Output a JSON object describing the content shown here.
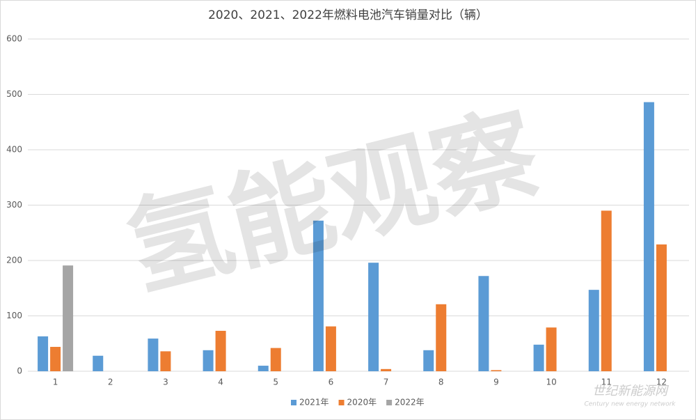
{
  "chart_data": {
    "type": "bar",
    "title": "2020、2021、2022年燃料电池汽车销量对比（辆）",
    "categories": [
      "1",
      "2",
      "3",
      "4",
      "5",
      "6",
      "7",
      "8",
      "9",
      "10",
      "11",
      "12"
    ],
    "series": [
      {
        "name": "2021年",
        "color": "#5b9bd5",
        "values": [
          63,
          28,
          59,
          38,
          10,
          272,
          196,
          38,
          172,
          48,
          147,
          486
        ]
      },
      {
        "name": "2020年",
        "color": "#ed7d31",
        "values": [
          44,
          null,
          36,
          73,
          42,
          81,
          4,
          121,
          2,
          79,
          290,
          229
        ]
      },
      {
        "name": "2022年",
        "color": "#a5a5a5",
        "values": [
          191,
          null,
          null,
          null,
          null,
          null,
          null,
          null,
          null,
          null,
          null,
          null
        ]
      }
    ],
    "ylim": [
      0,
      600
    ],
    "yticks": [
      0,
      100,
      200,
      300,
      400,
      500,
      600
    ],
    "grid": true,
    "legend": "bottom",
    "watermark": "氢能观察",
    "logo": "世纪新能源网",
    "logo_subtitle": "Century new energy network"
  }
}
